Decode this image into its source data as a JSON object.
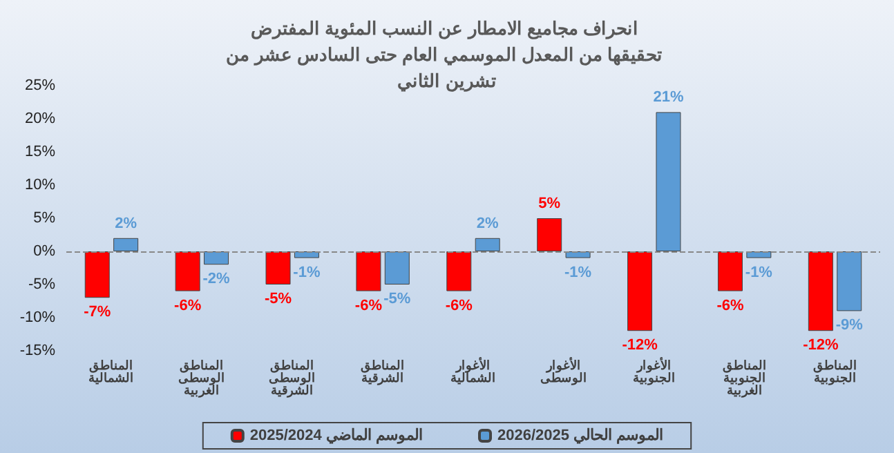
{
  "chart_data": {
    "type": "bar",
    "title": "انحراف مجاميع الامطار عن النسب المئوية المفترض تحقيقها من المعدل الموسمي العام حتى السادس عشر من تشرين الثاني",
    "categories": [
      "المناطق الشمالية",
      "المناطق الوسطى الغربية",
      "المناطق الوسطى الشرقية",
      "المناطق الشرقية",
      "الأغوار الشمالية",
      "الأغوار الوسطى",
      "الأغوار الجنوبية",
      "المناطق الجنوبية الغربية",
      "المناطق الجنوبية"
    ],
    "series": [
      {
        "name": "الموسم الماضي 2025/2024",
        "color": "#ff0000",
        "values": [
          -7,
          -6,
          -5,
          -6,
          -6,
          5,
          -12,
          -6,
          -12
        ],
        "value_labels": [
          "-7%",
          "-6%",
          "-5%",
          "-6%",
          "-6%",
          "5%",
          "-12%",
          "-6%",
          "-12%"
        ]
      },
      {
        "name": "الموسم الحالي 2026/2025",
        "color": "#5b9bd5",
        "values": [
          2,
          -2,
          -1,
          -5,
          2,
          -1,
          21,
          -1,
          -9
        ],
        "value_labels": [
          "2%",
          "-2%",
          "-1%",
          "-5%",
          "2%",
          "-1%",
          "21%",
          "-1%",
          "-9%"
        ]
      }
    ],
    "ref_lines": [
      {
        "axis": "y",
        "value": 0,
        "line_style": "dashed",
        "color": "#888888"
      }
    ],
    "ylim": [
      -15,
      25
    ],
    "yticks": [
      {
        "value": -15,
        "label": "-15%"
      },
      {
        "value": -10,
        "label": "-10%"
      },
      {
        "value": -5,
        "label": "-5%"
      },
      {
        "value": 0,
        "label": "0%"
      },
      {
        "value": 5,
        "label": "5%"
      },
      {
        "value": 10,
        "label": "10%"
      },
      {
        "value": 15,
        "label": "15%"
      },
      {
        "value": 20,
        "label": "20%"
      },
      {
        "value": 25,
        "label": "25%"
      }
    ],
    "legend": "bottom"
  }
}
